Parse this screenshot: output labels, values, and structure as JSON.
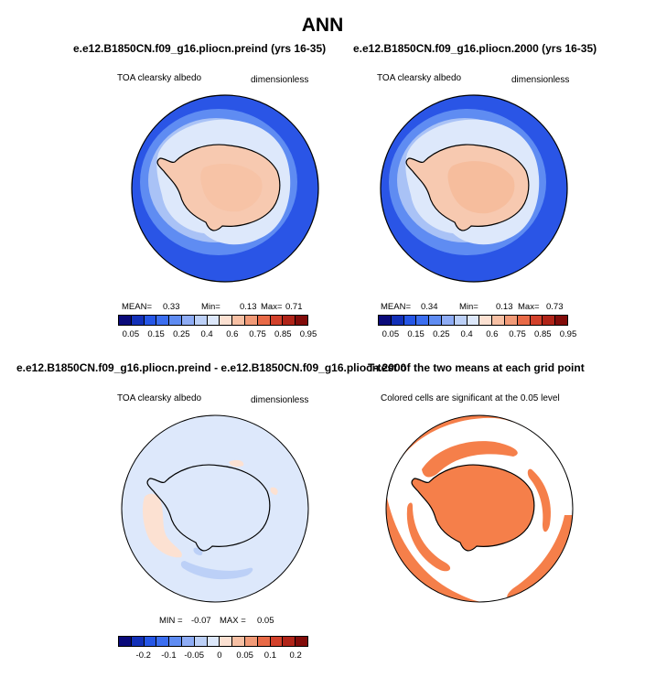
{
  "title": "ANN",
  "panels": {
    "top_left": {
      "case_title": "e.e12.B1850CN.f09_g16.pliocn.preind (yrs 16-35)",
      "variable": "TOA clearsky albedo",
      "units": "dimensionless",
      "stats": {
        "mean_label": "MEAN=",
        "mean": "0.33",
        "min_label": "Min=",
        "min": "0.13",
        "max_label": "Max=",
        "max": "0.71"
      }
    },
    "top_right": {
      "case_title": "e.e12.B1850CN.f09_g16.pliocn.2000 (yrs 16-35)",
      "variable": "TOA clearsky albedo",
      "units": "dimensionless",
      "stats": {
        "mean_label": "MEAN=",
        "mean": "0.34",
        "min_label": "Min=",
        "min": "0.13",
        "max_label": "Max=",
        "max": "0.73"
      }
    },
    "bottom_left": {
      "case_title": "e.e12.B1850CN.f09_g16.pliocn.preind - e.e12.B1850CN.f09_g16.pliocn.2000",
      "variable": "TOA clearsky albedo",
      "units": "dimensionless",
      "stats": {
        "min_label": "MIN =",
        "min": "-0.07",
        "max_label": "MAX =",
        "max": "0.05"
      }
    },
    "bottom_right": {
      "case_title": "T-test of the two means at each grid point",
      "subtitle": "Colored cells are significant at the 0.05 level"
    }
  },
  "colorbar_abs": {
    "colors": [
      "#0a0a7a",
      "#1230b8",
      "#2556e6",
      "#3b6ef0",
      "#5f8cf2",
      "#8eacf5",
      "#bcd0f7",
      "#dde8fb",
      "#fce1d2",
      "#f7c0a4",
      "#f19a77",
      "#e86a47",
      "#d2412b",
      "#b02418",
      "#820c0a"
    ],
    "labels": [
      "0.05",
      "0.15",
      "0.25",
      "0.4",
      "0.6",
      "0.75",
      "0.85",
      "0.95"
    ]
  },
  "colorbar_diff": {
    "colors": [
      "#0a0a7a",
      "#1230b8",
      "#2556e6",
      "#3b6ef0",
      "#5f8cf2",
      "#8eacf5",
      "#bcd0f7",
      "#dde8fb",
      "#fce1d2",
      "#f7c0a4",
      "#f19a77",
      "#e86a47",
      "#d2412b",
      "#b02418",
      "#820c0a"
    ],
    "labels": [
      "-0.2",
      "-0.1",
      "-0.05",
      "0",
      "0.05",
      "0.1",
      "0.2"
    ]
  },
  "map_colors": {
    "ocean_dark": "#2a55e6",
    "ocean_mid": "#5f8cf2",
    "ocean_light": "#a9c2f6",
    "seaice": "#dde8fb",
    "continent": "#f7c9b0",
    "continent_inner": "#f5b896",
    "diff_bg": "#dde8fb",
    "diff_pos": "#fce1d2",
    "diff_neg": "#bcd0f7",
    "ttest": "#f57f4a"
  }
}
